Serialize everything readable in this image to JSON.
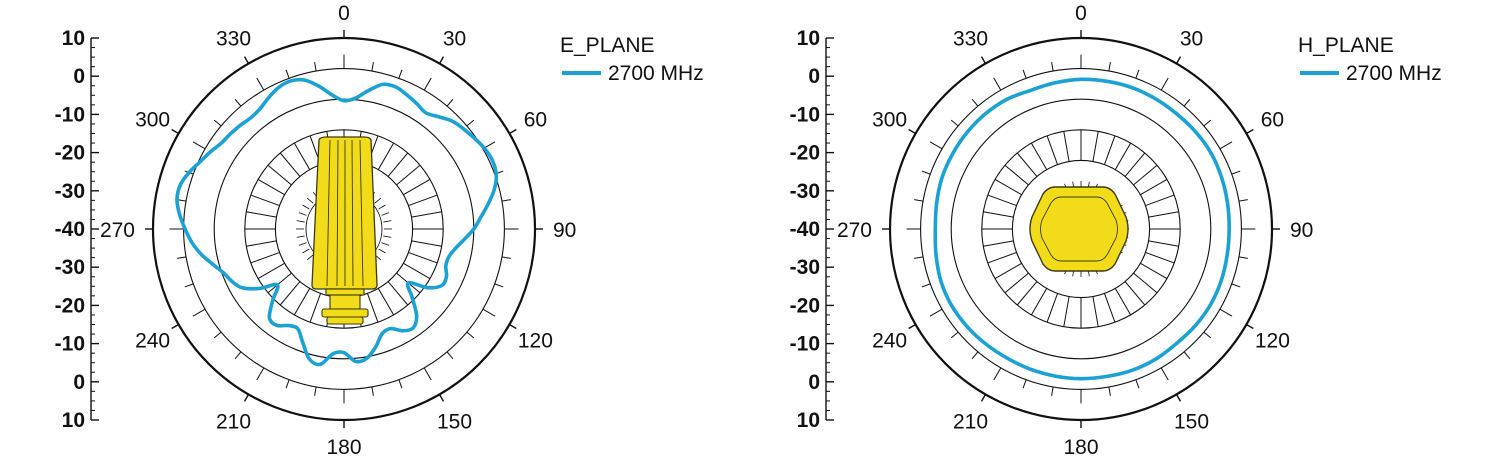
{
  "colors": {
    "trace": "#1ba1d4",
    "antenna_fill": "#f2dc1a",
    "antenna_stroke": "#3a3a10",
    "grid": "#111111"
  },
  "icons": {
    "e_plane_antenna": "antenna-side-view-icon",
    "h_plane_antenna": "antenna-top-view-icon"
  },
  "chart_data": [
    {
      "type": "polar-line",
      "title": "E_PLANE",
      "radial_scale_labels": [
        "10",
        "0",
        "-10",
        "-20",
        "-30",
        "-40",
        "-30",
        "-20",
        "-10",
        "0",
        "10"
      ],
      "radial_range_db": [
        -40,
        10
      ],
      "ring_levels_db": [
        -30,
        -20,
        -10,
        0,
        10
      ],
      "angle_labels": [
        "0",
        "30",
        "60",
        "90",
        "120",
        "150",
        "180",
        "210",
        "240",
        "270",
        "300",
        "330"
      ],
      "legend_position": "top-right",
      "series": [
        {
          "name": "2700 MHz",
          "angle_deg": [
            0,
            5,
            10,
            15,
            20,
            25,
            30,
            35,
            40,
            45,
            50,
            55,
            60,
            65,
            70,
            75,
            80,
            85,
            90,
            95,
            100,
            105,
            110,
            115,
            120,
            125,
            130,
            135,
            140,
            145,
            150,
            155,
            160,
            165,
            170,
            175,
            180,
            185,
            190,
            195,
            200,
            205,
            210,
            215,
            220,
            225,
            230,
            235,
            240,
            245,
            250,
            255,
            260,
            265,
            270,
            275,
            280,
            285,
            290,
            295,
            300,
            305,
            310,
            315,
            320,
            325,
            330,
            335,
            340,
            345,
            350,
            355,
            360
          ],
          "gain_db": [
            -10.5,
            -9.5,
            -6.5,
            -3.5,
            -3.0,
            -4.0,
            -5.0,
            -6.0,
            -4.5,
            -2.5,
            -1.5,
            -0.5,
            0.5,
            1.0,
            0.5,
            -1.5,
            -4.5,
            -7.5,
            -10.0,
            -13.0,
            -15.5,
            -17.0,
            -17.0,
            -15.5,
            -15.5,
            -19.0,
            -25.0,
            -21.0,
            -15.5,
            -13.0,
            -14.0,
            -16.5,
            -16.0,
            -12.5,
            -9.5,
            -9.0,
            -12.0,
            -11.5,
            -7.5,
            -8.5,
            -13.0,
            -16.5,
            -16.0,
            -14.0,
            -14.5,
            -19.5,
            -24.0,
            -18.5,
            -14.0,
            -12.0,
            -10.5,
            -8.0,
            -5.0,
            -2.5,
            -0.5,
            1.5,
            3.0,
            3.0,
            1.5,
            -0.5,
            -2.0,
            -3.5,
            -4.0,
            -4.5,
            -5.0,
            -4.5,
            -3.0,
            -1.5,
            -1.0,
            -2.0,
            -5.0,
            -8.5,
            -10.5
          ]
        }
      ]
    },
    {
      "type": "polar-line",
      "title": "H_PLANE",
      "radial_scale_labels": [
        "10",
        "0",
        "-10",
        "-20",
        "-30",
        "-40",
        "-30",
        "-20",
        "-10",
        "0",
        "10"
      ],
      "radial_range_db": [
        -40,
        10
      ],
      "ring_levels_db": [
        -30,
        -20,
        -10,
        0,
        10
      ],
      "angle_labels": [
        "0",
        "30",
        "60",
        "90",
        "120",
        "150",
        "180",
        "210",
        "240",
        "270",
        "300",
        "330"
      ],
      "legend_position": "top-right",
      "series": [
        {
          "name": "2700 MHz",
          "angle_deg": [
            0,
            10,
            20,
            30,
            40,
            50,
            60,
            70,
            80,
            90,
            100,
            110,
            120,
            130,
            140,
            150,
            160,
            170,
            180,
            190,
            200,
            210,
            220,
            230,
            240,
            250,
            260,
            270,
            280,
            290,
            300,
            310,
            320,
            330,
            340,
            350,
            360
          ],
          "gain_db": [
            -3.5,
            -3.4,
            -3.3,
            -3.4,
            -3.5,
            -3.3,
            -3.2,
            -3.5,
            -3.8,
            -4.0,
            -3.9,
            -3.6,
            -3.4,
            -3.5,
            -3.7,
            -3.4,
            -3.3,
            -3.5,
            -3.5,
            -3.6,
            -3.7,
            -3.8,
            -3.6,
            -3.4,
            -3.3,
            -3.6,
            -4.3,
            -4.8,
            -4.5,
            -4.0,
            -3.8,
            -3.6,
            -3.5,
            -3.6,
            -4.2,
            -3.9,
            -3.5
          ]
        }
      ]
    }
  ]
}
